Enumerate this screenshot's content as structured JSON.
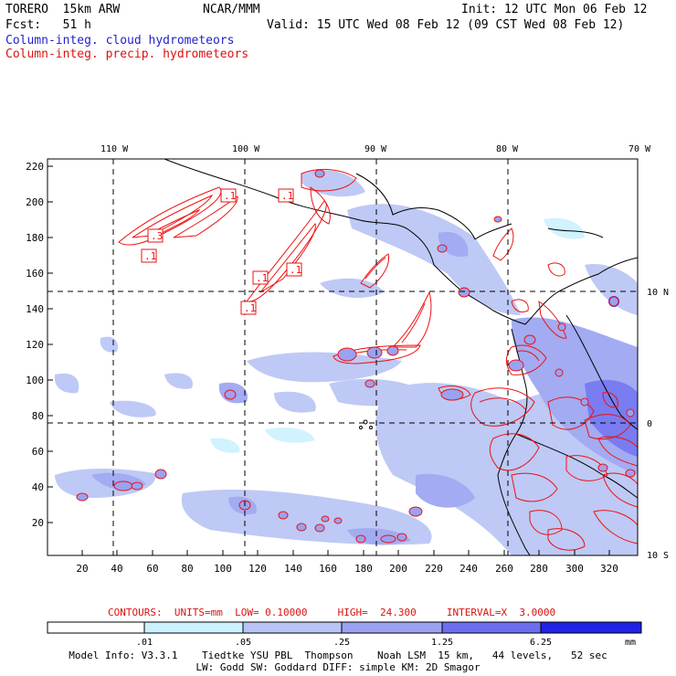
{
  "header": {
    "model": "TORERO  15km ARW",
    "org": "NCAR/MMM",
    "init": "Init: 12 UTC Mon 06 Feb 12",
    "fcst": "Fcst:   51 h",
    "valid": "Valid: 15 UTC Wed 08 Feb 12 (09 CST Wed 08 Feb 12)",
    "field1": "Column-integ. cloud hydrometeors",
    "field2": "Column-integ. precip. hydrometeors"
  },
  "map": {
    "lon_labels": [
      "110 W",
      "100 W",
      "90 W",
      "80 W",
      "70 W"
    ],
    "lat_labels": [
      "10 N",
      "0",
      "10 S"
    ],
    "y_ticks": [
      "220",
      "200",
      "180",
      "160",
      "140",
      "120",
      "100",
      "80",
      "60",
      "40",
      "20"
    ],
    "x_ticks": [
      "20",
      "40",
      "60",
      "80",
      "100",
      "120",
      "140",
      "160",
      "180",
      "200",
      "220",
      "240",
      "260",
      "280",
      "300",
      "320"
    ],
    "contour_labels": [
      ".1",
      ".1",
      ".3",
      ".1",
      ".1",
      ".1",
      ".1",
      ".1"
    ]
  },
  "contours_info": "CONTOURS:  UNITS=mm  LOW= 0.10000     HIGH=  24.300     INTERVAL=X  3.0000",
  "colorbar": {
    "labels": [
      ".01",
      ".05",
      ".25",
      "1.25",
      "6.25"
    ],
    "unit": "mm",
    "colors": [
      "#ffffff",
      "#ccf2ff",
      "#b8c4f5",
      "#9aa2f2",
      "#6c6ef0",
      "#4a4aee",
      "#2222e6"
    ]
  },
  "footer": {
    "line1": "Model Info: V3.3.1    Tiedtke YSU PBL  Thompson    Noah LSM  15 km,   44 levels,   52 sec",
    "line2": "LW: Godd SW: Goddard DIFF: simple KM: 2D Smagor"
  },
  "colors": {
    "cloud_label": "#2222cc",
    "precip_label": "#dd1111",
    "contour": "#ee1111"
  }
}
